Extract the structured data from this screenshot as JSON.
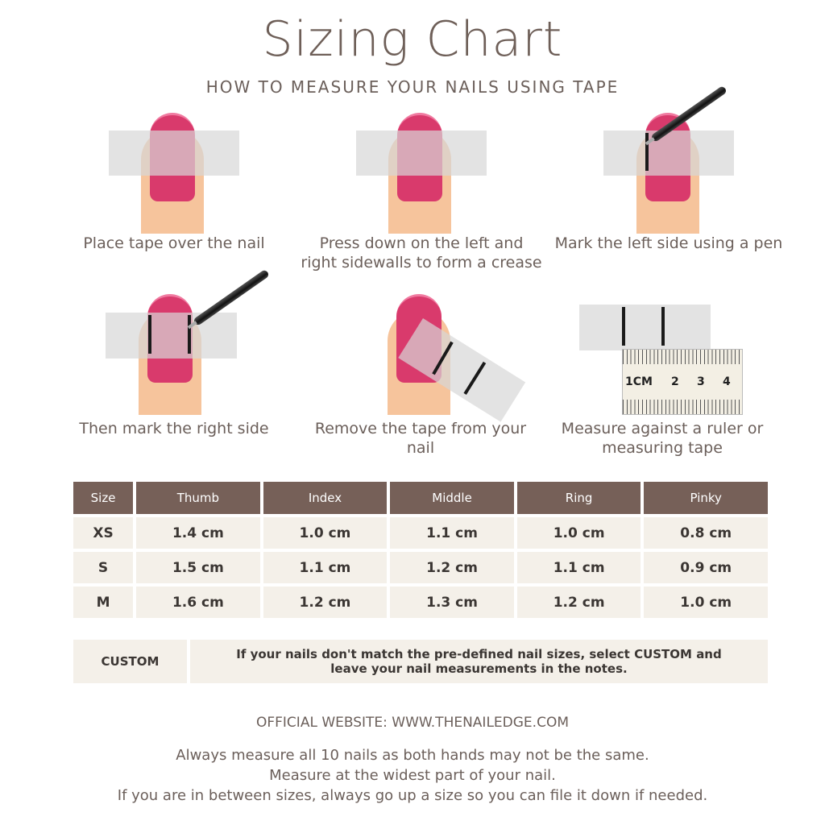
{
  "title": "Sizing Chart",
  "subtitle": "HOW TO MEASURE YOUR NAILS USING TAPE",
  "colors": {
    "nail": "#d93a6c",
    "skin": "#f6c49c",
    "header": "#766058",
    "row": "#f4f0e9",
    "title": "#6e5f58"
  },
  "steps": [
    {
      "caption": "Place tape over the nail"
    },
    {
      "caption": "Press down on the left and right sidewalls to form a crease"
    },
    {
      "caption": "Mark the left side using a pen"
    },
    {
      "caption": "Then mark the right side"
    },
    {
      "caption": "Remove the tape from your nail"
    },
    {
      "caption": "Measure against a ruler or measuring tape"
    }
  ],
  "ruler": {
    "labels": [
      "1CM",
      "2",
      "3",
      "4"
    ]
  },
  "table": {
    "headers": [
      "Size",
      "Thumb",
      "Index",
      "Middle",
      "Ring",
      "Pinky"
    ],
    "rows": [
      [
        "XS",
        "1.4 cm",
        "1.0 cm",
        "1.1 cm",
        "1.0 cm",
        "0.8 cm"
      ],
      [
        "S",
        "1.5 cm",
        "1.1 cm",
        "1.2 cm",
        "1.1 cm",
        "0.9 cm"
      ],
      [
        "M",
        "1.6 cm",
        "1.2 cm",
        "1.3 cm",
        "1.2 cm",
        "1.0 cm"
      ]
    ]
  },
  "custom": {
    "label": "CUSTOM",
    "text": "If your nails don't match the pre-defined nail sizes, select CUSTOM and leave your nail measurements in the notes."
  },
  "website": "OFFICIAL WEBSITE: WWW.THENAILEDGE.COM",
  "notes": [
    "Always measure all 10 nails as both hands may not be the same.",
    "Measure at the widest part of your nail.",
    "If you are in between sizes, always go up a size so you can file it down if needed."
  ]
}
